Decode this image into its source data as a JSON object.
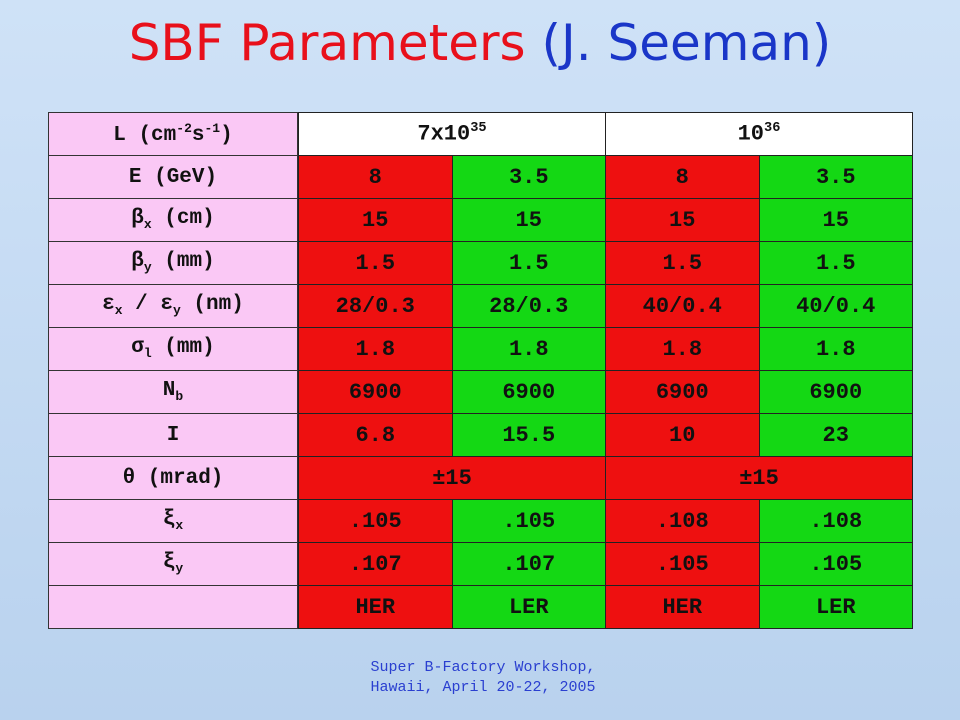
{
  "title": {
    "part1": "SBF Parameters",
    "part2": "(J. Seeman)"
  },
  "labels": {
    "luminosity": {
      "pre": "L (cm",
      "sup1": "-2",
      "mid": "s",
      "sup2": "-1",
      "post": ")"
    },
    "energy": "E (GeV)",
    "beta_x": {
      "sym": "β",
      "sub": "x",
      "post": " (cm)"
    },
    "beta_y": {
      "sym": "β",
      "sub": "y",
      "post": " (mm)"
    },
    "emittance": {
      "sym1": "ε",
      "sub1": "x",
      "mid": " / ",
      "sym2": "ε",
      "sub2": "y",
      "post": " (nm)"
    },
    "sigma_l": {
      "sym": "σ",
      "sub": "l",
      "post": " (mm)"
    },
    "n_b": {
      "sym": "N",
      "sub": "b"
    },
    "current": "I",
    "theta": "θ (mrad)",
    "xi_x": {
      "sym": "ξ",
      "sub": "x"
    },
    "xi_y": {
      "sym": "ξ",
      "sub": "y"
    },
    "ring": ""
  },
  "columns": {
    "lum_a": {
      "base": "7x10",
      "exp": "35"
    },
    "lum_b": {
      "base": "10",
      "exp": "36"
    }
  },
  "rows": {
    "energy": [
      "8",
      "3.5",
      "8",
      "3.5"
    ],
    "beta_x": [
      "15",
      "15",
      "15",
      "15"
    ],
    "beta_y": [
      "1.5",
      "1.5",
      "1.5",
      "1.5"
    ],
    "emittance": [
      "28/0.3",
      "28/0.3",
      "40/0.4",
      "40/0.4"
    ],
    "sigma_l": [
      "1.8",
      "1.8",
      "1.8",
      "1.8"
    ],
    "n_b": [
      "6900",
      "6900",
      "6900",
      "6900"
    ],
    "current": [
      "6.8",
      "15.5",
      "10",
      "23"
    ],
    "theta": [
      "±15",
      "±15"
    ],
    "xi_x": [
      ".105",
      ".105",
      ".108",
      ".108"
    ],
    "xi_y": [
      ".107",
      ".107",
      ".105",
      ".105"
    ],
    "ring": [
      "HER",
      "LER",
      "HER",
      "LER"
    ]
  },
  "colors": {
    "her": "#ee1010",
    "ler": "#14d814",
    "label_bg": "#fac8f5",
    "title_red": "#e8101b",
    "title_blue": "#1a36c8"
  },
  "footer": {
    "line1": "Super B-Factory Workshop,",
    "line2": "Hawaii, April 20-22, 2005"
  }
}
